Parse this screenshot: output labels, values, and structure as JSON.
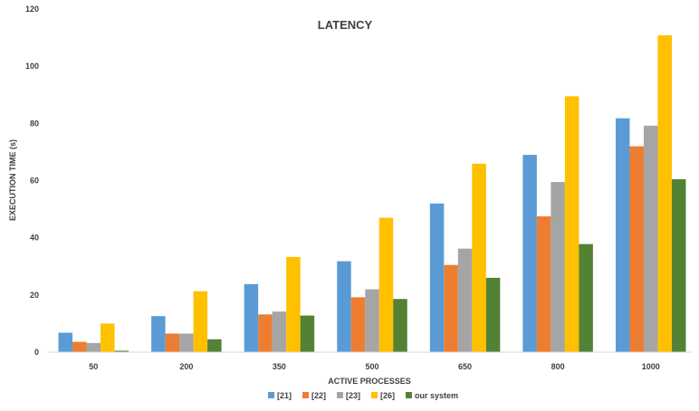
{
  "chart_data": {
    "type": "bar",
    "title": "LATENCY",
    "xlabel": "ACTIVE PROCESSES",
    "ylabel": "EXECUTION TIME (s)",
    "categories": [
      "50",
      "200",
      "350",
      "500",
      "650",
      "800",
      "1000"
    ],
    "ylim": [
      0,
      120
    ],
    "yticks": [
      0,
      20,
      40,
      60,
      80,
      100,
      120
    ],
    "grid": false,
    "legend_position": "bottom",
    "series": [
      {
        "name": "[21]",
        "color": "#5b9bd5",
        "values": [
          6.8,
          12.6,
          23.8,
          31.8,
          52.0,
          69.0,
          81.8
        ]
      },
      {
        "name": "[22]",
        "color": "#ed7d31",
        "values": [
          3.6,
          6.5,
          13.2,
          19.2,
          30.5,
          47.5,
          72.0
        ]
      },
      {
        "name": "[23]",
        "color": "#a5a5a5",
        "values": [
          3.2,
          6.5,
          14.2,
          22.0,
          36.2,
          59.5,
          79.2
        ]
      },
      {
        "name": "[26]",
        "color": "#ffc000",
        "values": [
          10.0,
          21.3,
          33.3,
          47.0,
          65.9,
          89.5,
          110.8
        ]
      },
      {
        "name": "our system",
        "color": "#548235",
        "values": [
          0.5,
          4.5,
          12.8,
          18.6,
          26.0,
          37.8,
          60.5
        ]
      }
    ]
  }
}
